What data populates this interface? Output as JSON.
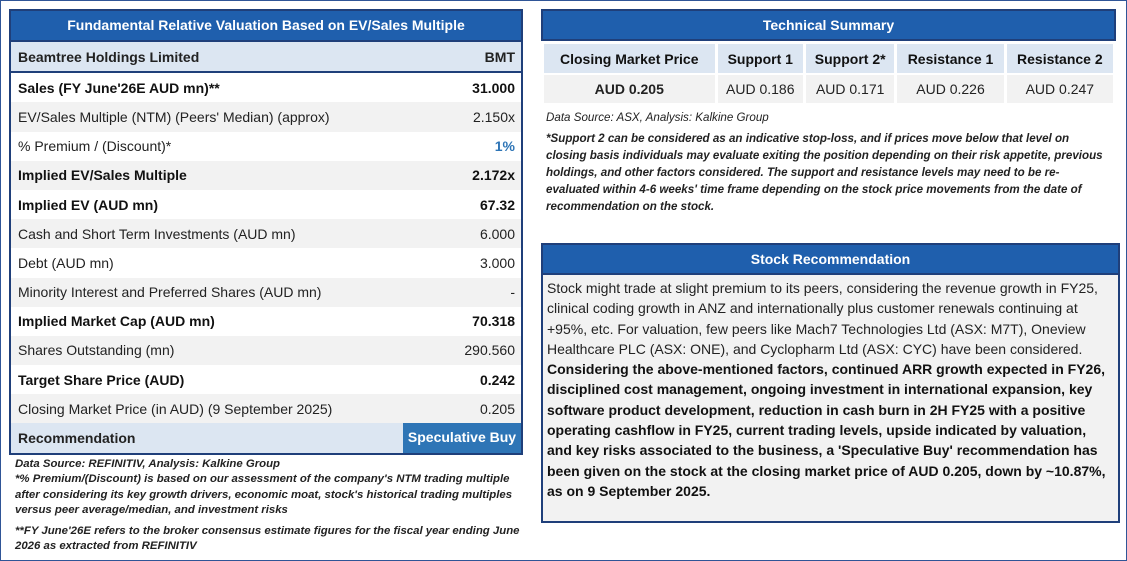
{
  "valuation": {
    "title": "Fundamental Relative Valuation Based on EV/Sales Multiple",
    "company": "Beamtree Holdings Limited",
    "ticker": "BMT",
    "rows": [
      {
        "label": "Sales (FY June'26E AUD mn)**",
        "value": "31.000"
      },
      {
        "label": "EV/Sales Multiple (NTM)  (Peers' Median) (approx)",
        "value": "2.150x"
      },
      {
        "label": "% Premium / (Discount)*",
        "value": "1%"
      },
      {
        "label": "Implied EV/Sales Multiple",
        "value": "2.172x"
      },
      {
        "label": "Implied EV (AUD mn)",
        "value": "67.32"
      },
      {
        "label": "Cash and Short Term Investments (AUD mn)",
        "value": "6.000"
      },
      {
        "label": "Debt (AUD mn)",
        "value": "3.000"
      },
      {
        "label": "Minority Interest and Preferred Shares (AUD mn)",
        "value": "-"
      },
      {
        "label": "Implied Market Cap (AUD mn)",
        "value": "70.318"
      },
      {
        "label": "Shares Outstanding (mn)",
        "value": "290.560"
      },
      {
        "label": "Target Share Price (AUD)",
        "value": "0.242"
      },
      {
        "label": "Closing Market Price (in AUD) (9 September 2025)",
        "value": "0.205"
      }
    ],
    "recommendation_label": "Recommendation",
    "recommendation_value": "Speculative Buy",
    "source": "Data Source: REFINITIV, Analysis: Kalkine Group",
    "note1": "*% Premium/(Discount) is based on our assessment of the company's NTM trading multiple after considering its key growth drivers, economic moat, stock's historical trading multiples versus peer average/median, and investment risks",
    "note2": "**FY June'26E refers to the broker consensus estimate figures for the fiscal year ending June 2026  as extracted from REFINITIV"
  },
  "technical": {
    "title": "Technical Summary",
    "headers": [
      "Closing Market Price",
      "Support 1",
      "Support 2*",
      "Resistance 1",
      "Resistance 2"
    ],
    "values": [
      "AUD 0.205",
      "AUD 0.186",
      "AUD 0.171",
      "AUD 0.226",
      "AUD 0.247"
    ],
    "source": "Data Source: ASX, Analysis: Kalkine Group",
    "note": "*Support 2 can be considered as an indicative stop-loss, and if prices move below that level on closing basis individuals may evaluate exiting the position depending on their risk appetite, previous holdings, and other factors considered. The support and resistance levels may need to be re-evaluated within 4-6 weeks' time frame depending on the stock price movements from the date of recommendation on the stock."
  },
  "stock_recommendation": {
    "title": "Stock Recommendation",
    "text_plain": "Stock might trade at slight premium to its peers, considering the revenue growth in FY25, clinical coding growth in ANZ and internationally plus customer renewals continuing at +95%, etc. For valuation, few peers like Mach7 Technologies Ltd (ASX: M7T), Oneview Healthcare PLC (ASX: ONE), and Cyclopharm Ltd (ASX: CYC) have been considered.",
    "text_bold": " Considering the above-mentioned factors, continued ARR growth expected in FY26, disciplined cost management, ongoing investment in international expansion, key software product development, reduction in cash burn in 2H FY25 with a positive operating cashflow in FY25, current trading levels, upside indicated by valuation, and key risks associated to the business, a 'Speculative Buy' recommendation has been given on the stock at the closing market price of AUD 0.205, down by ~10.87%,  as on 9 September 2025."
  }
}
